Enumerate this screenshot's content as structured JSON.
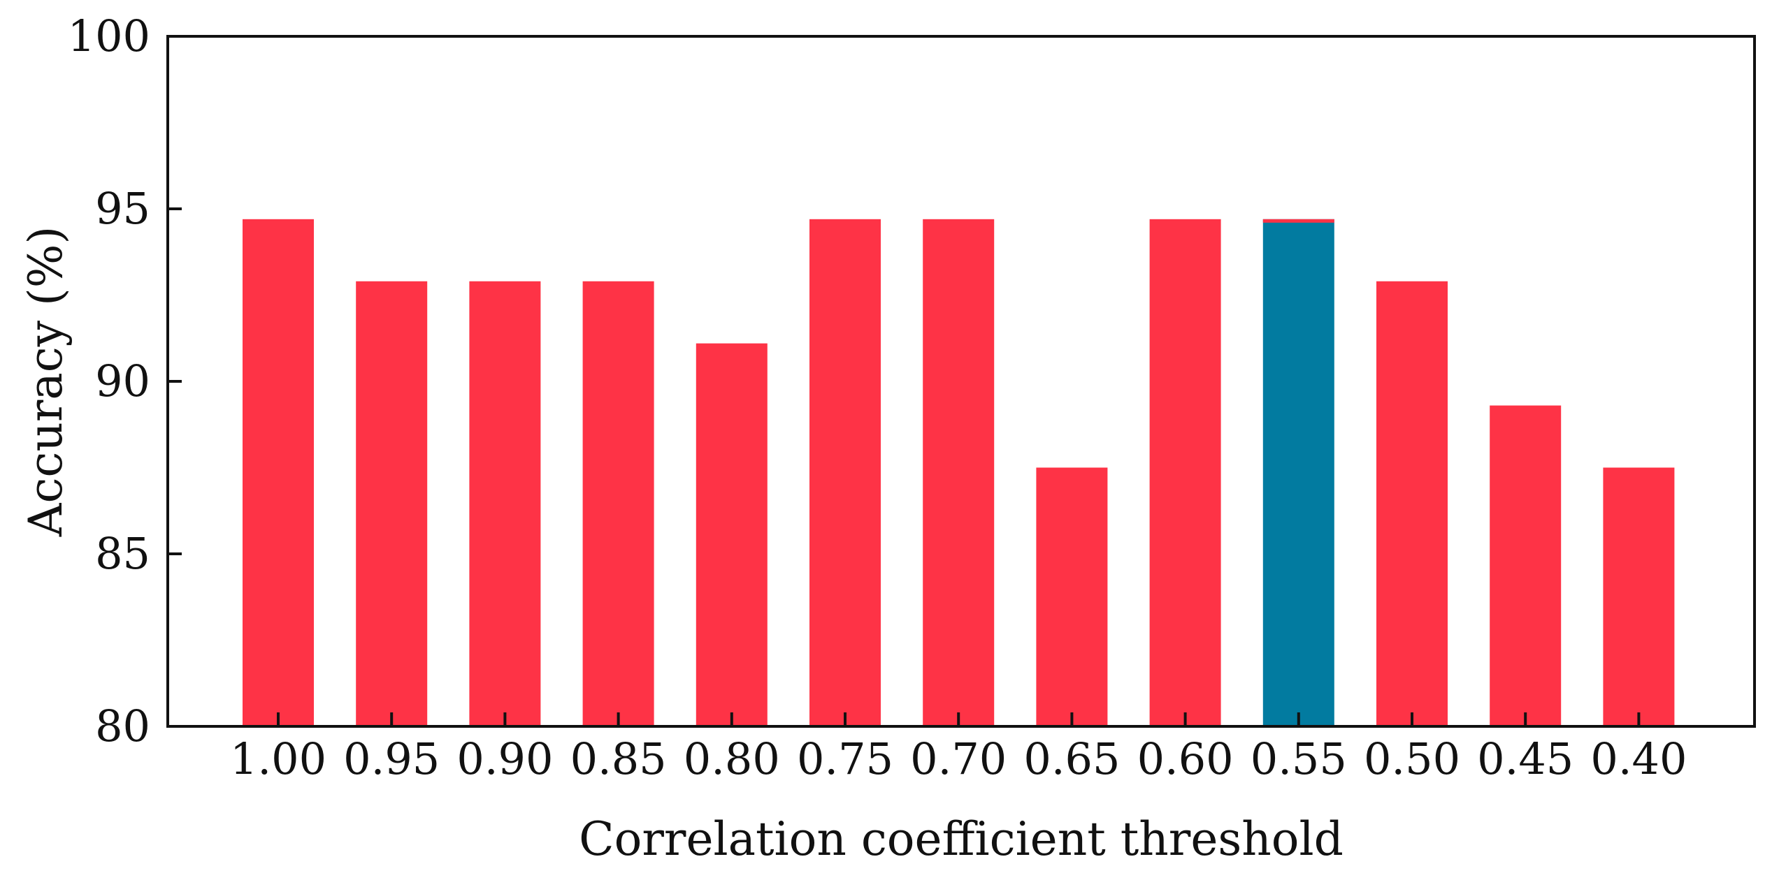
{
  "chart_data": {
    "type": "bar",
    "title": "",
    "xlabel": "Correlation coefficient threshold",
    "ylabel": "Accuracy (%)",
    "ylim": [
      80,
      100
    ],
    "yticks": [
      "80",
      "85",
      "90",
      "95",
      "100"
    ],
    "categories": [
      "1.00",
      "0.95",
      "0.90",
      "0.85",
      "0.80",
      "0.75",
      "0.70",
      "0.65",
      "0.60",
      "0.55",
      "0.50",
      "0.45",
      "0.40"
    ],
    "values": [
      94.7,
      92.9,
      92.9,
      92.9,
      91.1,
      94.7,
      94.7,
      87.5,
      94.7,
      94.7,
      92.9,
      89.3,
      87.5
    ],
    "highlight_index": 9,
    "grid": false,
    "legend": "none",
    "colors": {
      "bar": "#fe3346",
      "highlight": "#027ba0",
      "axis": "#111111"
    }
  }
}
